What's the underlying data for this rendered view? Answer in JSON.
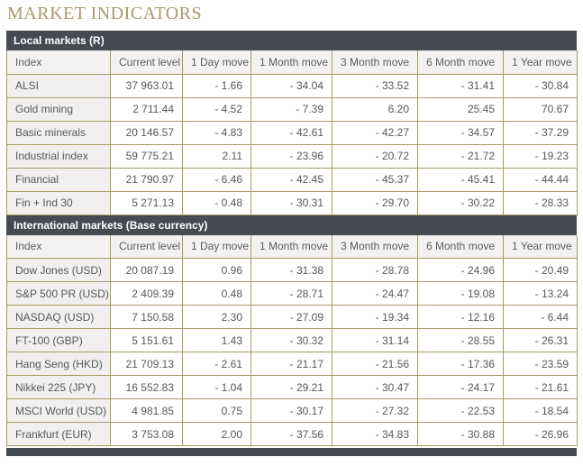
{
  "page": {
    "title": "MARKET INDICATORS"
  },
  "colors": {
    "section_header_bg": "#464a51",
    "table_border_gold": "#a69a67",
    "index_column_bg": "#f1f0ef",
    "column_header_bg": "#f3f2f1",
    "title_gold": "#a79a6b",
    "text_gray": "#55585e"
  },
  "columns": [
    "Index",
    "Current level",
    "1 Day move",
    "1 Month move",
    "3 Month move",
    "6 Month move",
    "1 Year move"
  ],
  "sections": [
    {
      "header": "Local markets (R)",
      "rows": [
        [
          "ALSI",
          "37 963.01",
          "- 1.66",
          "- 34.04",
          "- 33.52",
          "- 31.41",
          "- 30.84"
        ],
        [
          "Gold mining",
          "2 711.44",
          "- 4.52",
          "- 7.39",
          "6.20",
          "25.45",
          "70.67"
        ],
        [
          "Basic minerals",
          "20 146.57",
          "- 4.83",
          "- 42.61",
          "- 42.27",
          "- 34.57",
          "- 37.29"
        ],
        [
          "Industrial index",
          "59 775.21",
          "2.11",
          "- 23.96",
          "- 20.72",
          "- 21.72",
          "- 19.23"
        ],
        [
          "Financial",
          "21 790.97",
          "- 6.46",
          "- 42.45",
          "- 45.37",
          "- 45.41",
          "- 44.44"
        ],
        [
          "Fin + Ind 30",
          "5 271.13",
          "- 0.48",
          "- 30.31",
          "- 29.70",
          "- 30.22",
          "- 28.33"
        ]
      ]
    },
    {
      "header": "International markets (Base currency)",
      "rows": [
        [
          "Dow Jones (USD)",
          "20 087.19",
          "0.96",
          "- 31.38",
          "- 28.78",
          "- 24.96",
          "- 20.49"
        ],
        [
          "S&P 500 PR (USD)",
          "2 409.39",
          "0.48",
          "- 28.71",
          "- 24.47",
          "- 19.08",
          "- 13.24"
        ],
        [
          "NASDAQ (USD)",
          "7 150.58",
          "2.30",
          "- 27.09",
          "- 19.34",
          "- 12.16",
          "- 6.44"
        ],
        [
          "FT-100 (GBP)",
          "5 151.61",
          "1.43",
          "- 30.32",
          "- 31.14",
          "- 28.55",
          "- 26.31"
        ],
        [
          "Hang Seng (HKD)",
          "21 709.13",
          "- 2.61",
          "- 21.17",
          "- 21.56",
          "- 17.36",
          "- 23.59"
        ],
        [
          "Nikkei 225 (JPY)",
          "16 552.83",
          "- 1.04",
          "- 29.21",
          "- 30.47",
          "- 24.17",
          "- 21.61"
        ],
        [
          "MSCI World (USD)",
          "4 981.85",
          "0.75",
          "- 30.17",
          "- 27.32",
          "- 22.53",
          "- 18.54"
        ],
        [
          "Frankfurt (EUR)",
          "3 753.08",
          "2.00",
          "- 37.56",
          "- 34.83",
          "- 30.88",
          "- 26.96"
        ]
      ]
    }
  ]
}
